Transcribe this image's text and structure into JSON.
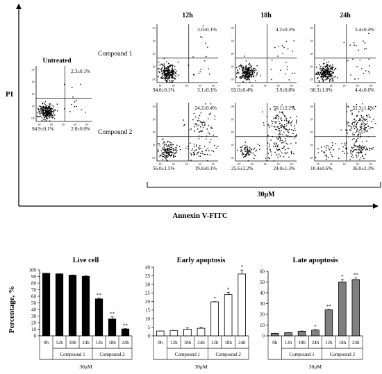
{
  "flow": {
    "y_axis_label": "PI",
    "x_axis_label": "Annexin V-FITC",
    "concentration": "30μM",
    "untreated": {
      "title": "Untreated",
      "q2": "2.3±0.1%",
      "q3": "94.9±0.1%",
      "q4": "2.8±0.0%"
    },
    "time_headers": [
      "12h",
      "18h",
      "24h"
    ],
    "rows": [
      {
        "label": "Compound 1",
        "panels": [
          {
            "q2": "3.0±0.1%",
            "q3": "94.0±0.1%",
            "q4": "3.1±0.1%"
          },
          {
            "q2": "4.2±0.3%",
            "q3": "92.0±0.4%",
            "q4": "3.9±0.8%"
          },
          {
            "q2": "5.4±0.4%",
            "q3": "90.3±1.0%",
            "q4": "4.4±0.6%"
          }
        ]
      },
      {
        "label": "Compound 2",
        "panels": [
          {
            "q2": "24.2±0.4%",
            "q3": "56.0±1.5%",
            "q4": "19.8±0.1%"
          },
          {
            "q2": "50.1±2.2%",
            "q3": "25.6±3.2%",
            "q4": "24.0±1.3%"
          },
          {
            "q2": "52.3±1.5%",
            "q3": "10.4±0.6%",
            "q4": "36.0±2.3%"
          }
        ]
      }
    ],
    "tick_labels": [
      "10⁰",
      "10¹",
      "10²",
      "10³",
      "10⁴"
    ]
  },
  "bar_block": {
    "ylabel": "Percentage, %",
    "group_labels": [
      "Compound 1",
      "Compound 2"
    ],
    "concentration": "30μM"
  },
  "chart_data": [
    {
      "type": "bar",
      "title": "Live cell",
      "categories": [
        "0h",
        "12h",
        "18h",
        "24h",
        "12h",
        "18h",
        "24h"
      ],
      "values": [
        94.9,
        94.0,
        92.0,
        90.3,
        56.0,
        25.6,
        10.4
      ],
      "errors": [
        0.1,
        0.1,
        0.4,
        1.0,
        1.5,
        3.2,
        0.6
      ],
      "significance": [
        "",
        "",
        "",
        "",
        "**",
        "**",
        "**"
      ],
      "ylim": [
        0,
        100
      ],
      "yticks": [
        0,
        10,
        20,
        30,
        40,
        50,
        60,
        70,
        80,
        90,
        100
      ],
      "color": "#000000"
    },
    {
      "type": "bar",
      "title": "Early apoptosis",
      "categories": [
        "0h",
        "12h",
        "18h",
        "24h",
        "12h",
        "18h",
        "24h"
      ],
      "values": [
        2.8,
        3.1,
        3.9,
        4.4,
        19.8,
        24.0,
        36.0
      ],
      "errors": [
        0.0,
        0.1,
        0.8,
        0.6,
        0.1,
        1.3,
        2.3
      ],
      "significance": [
        "",
        "",
        "",
        "",
        "*",
        "*",
        "*"
      ],
      "ylim": [
        0,
        40
      ],
      "yticks": [
        0,
        5,
        10,
        15,
        20,
        25,
        30,
        35,
        40
      ],
      "color": "#ffffff"
    },
    {
      "type": "bar",
      "title": "Late apoptosis",
      "categories": [
        "0h",
        "12h",
        "18h",
        "24h",
        "12h",
        "18h",
        "24h"
      ],
      "values": [
        2.3,
        3.0,
        4.2,
        5.4,
        24.2,
        50.1,
        52.3
      ],
      "errors": [
        0.1,
        0.1,
        0.3,
        0.4,
        0.4,
        2.2,
        1.5
      ],
      "significance": [
        "",
        "",
        "",
        "*",
        "**",
        "*",
        "**"
      ],
      "ylim": [
        0,
        60
      ],
      "yticks": [
        0,
        10,
        20,
        30,
        40,
        50,
        60
      ],
      "color": "#808080"
    }
  ]
}
